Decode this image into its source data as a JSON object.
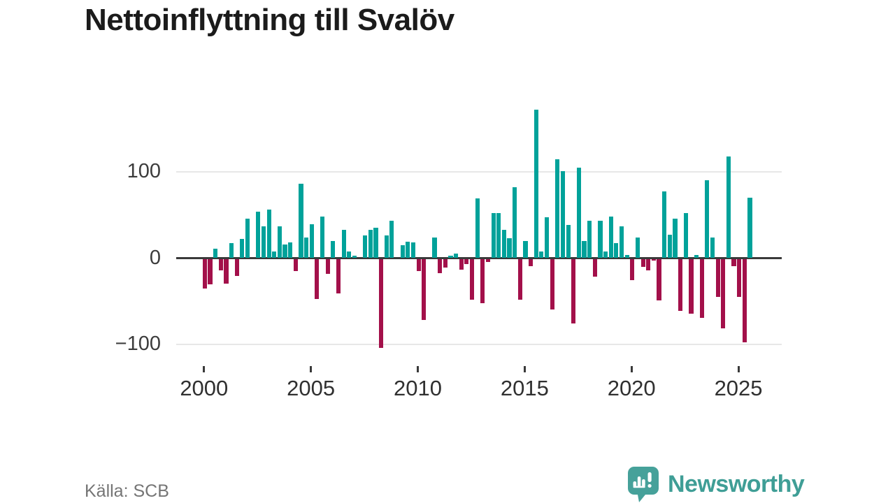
{
  "title": "Nettoinflyttning till Svalöv",
  "source": "Källa: SCB",
  "logo": {
    "text": "Newsworthy"
  },
  "colors": {
    "positive": "#00a29a",
    "negative": "#a3104a",
    "grid": "#e7e7e7",
    "axis": "#3a3a3a",
    "logo_teal": "#46a19a"
  },
  "chart_data": {
    "type": "bar",
    "title": "Nettoinflyttning till Svalöv",
    "ylabel": "",
    "xlabel": "",
    "frequency": "quarterly",
    "x_start": "2000 Q1",
    "x_end": "2025 Q3",
    "grid": "horizontal gridlines at 100 and -100 only, dark zero baseline",
    "ylim": [
      -110,
      180
    ],
    "y_ticks": [
      {
        "value": 100,
        "label": "100"
      },
      {
        "value": 0,
        "label": "0"
      },
      {
        "value": -100,
        "label": "−100"
      }
    ],
    "x_ticks": [
      {
        "year": 2000,
        "label": "2000"
      },
      {
        "year": 2005,
        "label": "2005"
      },
      {
        "year": 2010,
        "label": "2010"
      },
      {
        "year": 2015,
        "label": "2015"
      },
      {
        "year": 2020,
        "label": "2020"
      },
      {
        "year": 2025,
        "label": "2025"
      }
    ],
    "quarters": [
      "2000Q1",
      "2000Q2",
      "2000Q3",
      "2000Q4",
      "2001Q1",
      "2001Q2",
      "2001Q3",
      "2001Q4",
      "2002Q1",
      "2002Q2",
      "2002Q3",
      "2002Q4",
      "2003Q1",
      "2003Q2",
      "2003Q3",
      "2003Q4",
      "2004Q1",
      "2004Q2",
      "2004Q3",
      "2004Q4",
      "2005Q1",
      "2005Q2",
      "2005Q3",
      "2005Q4",
      "2006Q1",
      "2006Q2",
      "2006Q3",
      "2006Q4",
      "2007Q1",
      "2007Q2",
      "2007Q3",
      "2007Q4",
      "2008Q1",
      "2008Q2",
      "2008Q3",
      "2008Q4",
      "2009Q1",
      "2009Q2",
      "2009Q3",
      "2009Q4",
      "2010Q1",
      "2010Q2",
      "2010Q3",
      "2010Q4",
      "2011Q1",
      "2011Q2",
      "2011Q3",
      "2011Q4",
      "2012Q1",
      "2012Q2",
      "2012Q3",
      "2012Q4",
      "2013Q1",
      "2013Q2",
      "2013Q3",
      "2013Q4",
      "2014Q1",
      "2014Q2",
      "2014Q3",
      "2014Q4",
      "2015Q1",
      "2015Q2",
      "2015Q3",
      "2015Q4",
      "2016Q1",
      "2016Q2",
      "2016Q3",
      "2016Q4",
      "2017Q1",
      "2017Q2",
      "2017Q3",
      "2017Q4",
      "2018Q1",
      "2018Q2",
      "2018Q3",
      "2018Q4",
      "2019Q1",
      "2019Q2",
      "2019Q3",
      "2019Q4",
      "2020Q1",
      "2020Q2",
      "2020Q3",
      "2020Q4",
      "2021Q1",
      "2021Q2",
      "2021Q3",
      "2021Q4",
      "2022Q1",
      "2022Q2",
      "2022Q3",
      "2022Q4",
      "2023Q1",
      "2023Q2",
      "2023Q3",
      "2023Q4",
      "2024Q1",
      "2024Q2",
      "2024Q3",
      "2024Q4",
      "2025Q1",
      "2025Q2",
      "2025Q3"
    ],
    "values": [
      -34,
      -29,
      11,
      -13,
      -28,
      17,
      -19,
      22,
      46,
      0,
      54,
      37,
      56,
      8,
      37,
      16,
      18,
      -14,
      86,
      24,
      39,
      -46,
      48,
      -17,
      20,
      -40,
      33,
      8,
      3,
      0,
      26,
      33,
      35,
      -103,
      26,
      43,
      0,
      15,
      19,
      18,
      -14,
      -70,
      0,
      24,
      -16,
      -10,
      3,
      5,
      -12,
      -6,
      -47,
      69,
      -51,
      -3,
      52,
      52,
      33,
      23,
      82,
      -47,
      20,
      -8,
      172,
      8,
      47,
      -58,
      114,
      101,
      38,
      -74,
      105,
      20,
      43,
      -20,
      43,
      8,
      48,
      17,
      37,
      4,
      -24,
      24,
      -9,
      -13,
      -2,
      -48,
      77,
      27,
      46,
      -60,
      52,
      -63,
      4,
      -68,
      90,
      24,
      -44,
      -80,
      118,
      -8,
      -44,
      -96,
      70
    ]
  }
}
